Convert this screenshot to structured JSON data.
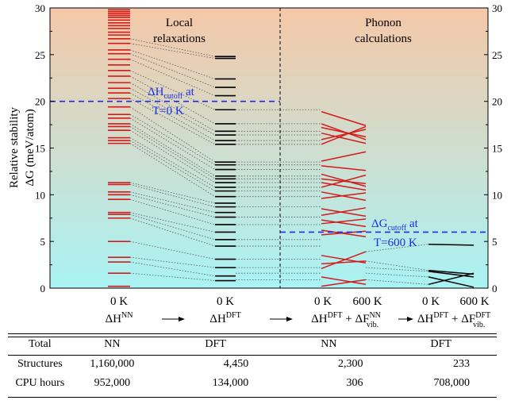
{
  "chart_data": {
    "type": "level-diagram",
    "ylabel_line1": "Relative stability",
    "ylabel_line2": "ΔG (meV/atom)",
    "ylim": [
      0,
      30
    ],
    "yticks": [
      "0",
      "5",
      "10",
      "15",
      "20",
      "25",
      "30"
    ],
    "text_local": [
      "Local",
      "relaxations"
    ],
    "text_phonon": [
      "Phonon",
      "calculations"
    ],
    "cutoff_h": {
      "value": 20,
      "label_main": "ΔH",
      "label_sub": "cutoff",
      "label_tail": " at",
      "label_line2": "T=0 K"
    },
    "cutoff_g": {
      "value": 6,
      "label_main": "ΔG",
      "label_sub": "cutoff",
      "label_tail": " at",
      "label_line2": "T=600 K"
    },
    "colors": {
      "nn": "#d41a1a",
      "dft": "#000000",
      "cutoff": "#1a2ee8",
      "bg_top": "#f5c8a8",
      "bg_bottom": "#a9f3f5"
    },
    "nn_levels": [
      0.2,
      1.6,
      2.8,
      3.3,
      5.0,
      7.5,
      7.9,
      8.1,
      9.5,
      10.0,
      10.3,
      11.1,
      11.3,
      15.5,
      15.8,
      16.1,
      16.9,
      17.3,
      17.6,
      18.2,
      18.6,
      19.4,
      20.3,
      20.9,
      21.4,
      22.0,
      22.7,
      23.3,
      23.9,
      24.5,
      25.1,
      25.5,
      26.2,
      26.7,
      27.1,
      27.4,
      27.8,
      28.1,
      28.4,
      28.7,
      29.0,
      29.2,
      29.4,
      29.6,
      29.8
    ],
    "dft_levels": [
      0.8,
      1.3,
      2.2,
      3.1,
      4.5,
      5.2,
      6.0,
      6.8,
      7.6,
      8.1,
      8.7,
      9.1,
      9.8,
      10.4,
      10.8,
      11.3,
      11.7,
      12.0,
      12.7,
      13.2,
      13.5,
      15.4,
      15.8,
      16.4,
      16.8,
      17.6,
      19.1,
      20.6,
      21.5,
      22.4,
      24.6,
      24.8
    ],
    "connections": [
      [
        1.6,
        0.8
      ],
      [
        2.8,
        1.3
      ],
      [
        3.3,
        2.2
      ],
      [
        5.0,
        3.1
      ],
      [
        7.5,
        4.5
      ],
      [
        7.9,
        5.2
      ],
      [
        8.1,
        6.0
      ],
      [
        9.5,
        6.8
      ],
      [
        10.0,
        7.6
      ],
      [
        10.3,
        8.1
      ],
      [
        11.1,
        8.7
      ],
      [
        11.3,
        9.1
      ],
      [
        15.5,
        9.8
      ],
      [
        15.8,
        10.4
      ],
      [
        16.1,
        10.8
      ],
      [
        16.9,
        11.3
      ],
      [
        17.3,
        11.7
      ],
      [
        17.6,
        12.0
      ],
      [
        18.2,
        12.7
      ],
      [
        18.6,
        13.2
      ],
      [
        19.4,
        13.5
      ],
      [
        20.3,
        15.4
      ],
      [
        20.9,
        15.8
      ],
      [
        21.4,
        16.4
      ],
      [
        22.0,
        16.8
      ],
      [
        22.7,
        17.6
      ],
      [
        23.3,
        19.1
      ],
      [
        24.5,
        20.6
      ],
      [
        25.1,
        21.5
      ],
      [
        25.5,
        22.4
      ],
      [
        26.2,
        24.6
      ],
      [
        26.7,
        24.8
      ]
    ],
    "phonon_nn": [
      [
        0.2,
        0.9
      ],
      [
        1.2,
        0.4
      ],
      [
        2.1,
        3.9
      ],
      [
        2.6,
        2.9
      ],
      [
        3.5,
        2.7
      ],
      [
        5.7,
        6.1
      ],
      [
        6.2,
        5.5
      ],
      [
        6.9,
        7.4
      ],
      [
        7.3,
        6.6
      ],
      [
        7.8,
        8.6
      ],
      [
        8.5,
        7.7
      ],
      [
        9.6,
        10.2
      ],
      [
        10.3,
        9.4
      ],
      [
        10.8,
        12.1
      ],
      [
        11.3,
        10.5
      ],
      [
        11.7,
        11.2
      ],
      [
        12.2,
        10.9
      ],
      [
        13.1,
        12.6
      ],
      [
        13.6,
        14.6
      ],
      [
        15.4,
        17.3
      ],
      [
        15.9,
        17.0
      ],
      [
        16.6,
        15.5
      ],
      [
        17.2,
        16.2
      ],
      [
        17.6,
        15.9
      ],
      [
        18.9,
        17.4
      ]
    ],
    "phonon_dft": [
      [
        0.4,
        1.6
      ],
      [
        1.2,
        0.1
      ],
      [
        1.8,
        1.2
      ],
      [
        1.9,
        1.5
      ],
      [
        4.7,
        4.6
      ]
    ],
    "phonon_links": [
      0.9,
      1.6,
      2.2,
      3.1,
      4.5,
      5.2,
      6.8,
      7.6,
      8.7,
      9.8,
      10.4,
      10.8,
      11.3,
      11.7,
      12.0,
      12.7,
      13.2,
      13.5,
      15.4,
      15.8,
      16.4,
      16.8,
      17.6,
      19.1
    ],
    "phonon_to_dft": [
      [
        0.9,
        0.4
      ],
      [
        1.6,
        1.2
      ],
      [
        2.2,
        1.8
      ],
      [
        2.9,
        1.9
      ],
      [
        3.9,
        4.7
      ]
    ],
    "temp_labels": {
      "ht0": "0 K",
      "dft0": "0 K",
      "ph0": "0 K",
      "ph600": "600 K",
      "f0": "0 K",
      "f600": "600 K"
    },
    "x_labels": {
      "h_nn": {
        "main": "ΔH",
        "sup": "NN"
      },
      "h_dft": {
        "main": "ΔH",
        "sup": "DFT"
      },
      "g_nn": {
        "main": "ΔH",
        "sup": "DFT",
        "plus": " + ΔF",
        "sup2": "NN",
        "sub2": "vib."
      },
      "g_dft": {
        "main": "ΔH",
        "sup": "DFT",
        "plus": " + ΔF",
        "sup2": "DFT",
        "sub2": "vib."
      }
    },
    "arrow": "⟶"
  },
  "table": {
    "headers": [
      "Total",
      "NN",
      "DFT",
      "NN",
      "DFT"
    ],
    "rows": [
      {
        "label": "Structures",
        "values": [
          "1,160,000",
          "4,450",
          "2,300",
          "233"
        ]
      },
      {
        "label": "CPU hours",
        "values": [
          "952,000",
          "134,000",
          "306",
          "708,000"
        ]
      }
    ]
  }
}
